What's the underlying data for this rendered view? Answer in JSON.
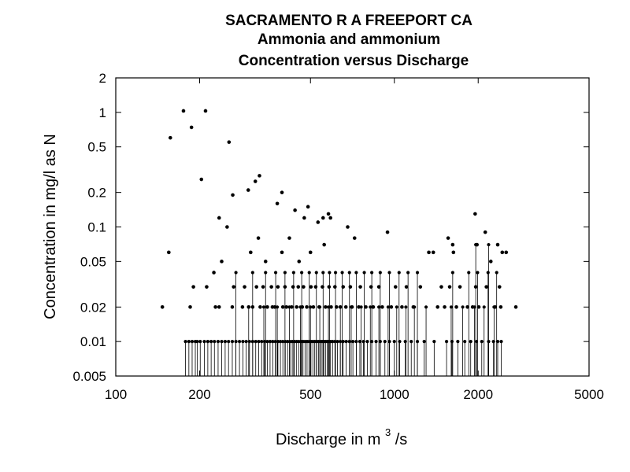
{
  "chart_data": {
    "type": "scatter",
    "title": "SACRAMENTO R A FREEPORT CA",
    "subtitle_1": "Ammonia and ammonium",
    "subtitle_2": "Concentration versus Discharge",
    "xlabel_main": "Discharge in m",
    "xlabel_sup": "3",
    "xlabel_tail": "/s",
    "ylabel": "Concentration in mg/l as N",
    "x_scale": "log",
    "y_scale": "log",
    "xlim": [
      100,
      5000
    ],
    "ylim": [
      0.005,
      2
    ],
    "x_ticks": [
      100,
      200,
      500,
      1000,
      2000,
      5000
    ],
    "x_tick_labels": [
      "100",
      "200",
      "500",
      "1000",
      "2000",
      "5000"
    ],
    "y_ticks": [
      0.005,
      0.01,
      0.02,
      0.05,
      0.1,
      0.2,
      0.5,
      1,
      2
    ],
    "y_tick_labels": [
      "0.005",
      "0.01",
      "0.02",
      "0.05",
      "0.1",
      "0.2",
      "0.5",
      "1",
      "2"
    ],
    "grid": false,
    "legend": "none",
    "censored_values_drawn_as": "vertical line from axis to reporting limit",
    "series": [
      {
        "kind": "detected",
        "points": [
          [
            147,
            0.02
          ],
          [
            155,
            0.06
          ],
          [
            157,
            0.6
          ],
          [
            175,
            1.03
          ],
          [
            187,
            0.74
          ],
          [
            203,
            0.26
          ],
          [
            210,
            1.03
          ],
          [
            235,
            0.12
          ],
          [
            251,
            0.1
          ],
          [
            255,
            0.55
          ],
          [
            263,
            0.19
          ],
          [
            299,
            0.21
          ],
          [
            317,
            0.25
          ],
          [
            325,
            0.08
          ],
          [
            328,
            0.28
          ],
          [
            380,
            0.16
          ],
          [
            395,
            0.2
          ],
          [
            440,
            0.14
          ],
          [
            475,
            0.12
          ],
          [
            490,
            0.15
          ],
          [
            532,
            0.11
          ],
          [
            555,
            0.12
          ],
          [
            580,
            0.13
          ],
          [
            590,
            0.12
          ],
          [
            680,
            0.1
          ],
          [
            720,
            0.08
          ],
          [
            945,
            0.09
          ],
          [
            1620,
            0.07
          ],
          [
            1950,
            0.13
          ],
          [
            2120,
            0.09
          ],
          [
            2350,
            0.07
          ],
          [
            2520,
            0.06
          ],
          [
            2730,
            0.02
          ],
          [
            185,
            0.02
          ],
          [
            190,
            0.03
          ],
          [
            212,
            0.03
          ],
          [
            225,
            0.04
          ],
          [
            240,
            0.05
          ],
          [
            305,
            0.06
          ],
          [
            345,
            0.05
          ],
          [
            395,
            0.06
          ],
          [
            420,
            0.08
          ],
          [
            455,
            0.05
          ],
          [
            500,
            0.06
          ],
          [
            560,
            0.07
          ],
          [
            1330,
            0.06
          ],
          [
            1380,
            0.06
          ],
          [
            1560,
            0.08
          ],
          [
            1630,
            0.06
          ],
          [
            1980,
            0.07
          ],
          [
            2220,
            0.05
          ],
          [
            2440,
            0.06
          ],
          [
            228,
            0.02
          ],
          [
            235,
            0.02
          ],
          [
            262,
            0.02
          ],
          [
            285,
            0.02
          ],
          [
            300,
            0.02
          ],
          [
            310,
            0.02
          ],
          [
            330,
            0.02
          ],
          [
            350,
            0.02
          ],
          [
            365,
            0.02
          ],
          [
            372,
            0.02
          ],
          [
            398,
            0.02
          ],
          [
            410,
            0.02
          ],
          [
            428,
            0.02
          ],
          [
            446,
            0.02
          ],
          [
            467,
            0.02
          ],
          [
            485,
            0.02
          ],
          [
            512,
            0.02
          ],
          [
            537,
            0.02
          ],
          [
            566,
            0.02
          ],
          [
            593,
            0.02
          ],
          [
            620,
            0.02
          ],
          [
            640,
            0.02
          ],
          [
            670,
            0.02
          ],
          [
            705,
            0.02
          ],
          [
            745,
            0.02
          ],
          [
            790,
            0.02
          ],
          [
            840,
            0.02
          ],
          [
            905,
            0.02
          ],
          [
            975,
            0.02
          ],
          [
            1065,
            0.02
          ],
          [
            1170,
            0.02
          ],
          [
            1430,
            0.02
          ],
          [
            1515,
            0.02
          ],
          [
            1670,
            0.02
          ],
          [
            1830,
            0.02
          ],
          [
            1910,
            0.02
          ],
          [
            2010,
            0.02
          ],
          [
            2300,
            0.02
          ],
          [
            2410,
            0.02
          ],
          [
            265,
            0.03
          ],
          [
            290,
            0.03
          ],
          [
            320,
            0.03
          ],
          [
            338,
            0.03
          ],
          [
            362,
            0.03
          ],
          [
            382,
            0.03
          ],
          [
            405,
            0.03
          ],
          [
            433,
            0.03
          ],
          [
            452,
            0.03
          ],
          [
            472,
            0.03
          ],
          [
            502,
            0.03
          ],
          [
            522,
            0.03
          ],
          [
            552,
            0.03
          ],
          [
            583,
            0.03
          ],
          [
            612,
            0.03
          ],
          [
            655,
            0.03
          ],
          [
            695,
            0.03
          ],
          [
            755,
            0.03
          ],
          [
            825,
            0.03
          ],
          [
            880,
            0.03
          ],
          [
            1010,
            0.03
          ],
          [
            1105,
            0.03
          ],
          [
            1240,
            0.03
          ],
          [
            1475,
            0.03
          ],
          [
            1580,
            0.03
          ],
          [
            1720,
            0.03
          ],
          [
            1960,
            0.03
          ],
          [
            2140,
            0.03
          ],
          [
            2385,
            0.03
          ]
        ]
      },
      {
        "kind": "censored",
        "points": [
          [
            178,
            0.01
          ],
          [
            183,
            0.01
          ],
          [
            188,
            0.01
          ],
          [
            193,
            0.01
          ],
          [
            196,
            0.01
          ],
          [
            201,
            0.01
          ],
          [
            208,
            0.01
          ],
          [
            214,
            0.01
          ],
          [
            220,
            0.01
          ],
          [
            226,
            0.01
          ],
          [
            233,
            0.01
          ],
          [
            240,
            0.01
          ],
          [
            247,
            0.01
          ],
          [
            254,
            0.01
          ],
          [
            262,
            0.01
          ],
          [
            270,
            0.01
          ],
          [
            278,
            0.01
          ],
          [
            286,
            0.01
          ],
          [
            294,
            0.01
          ],
          [
            302,
            0.01
          ],
          [
            310,
            0.01
          ],
          [
            318,
            0.01
          ],
          [
            326,
            0.01
          ],
          [
            334,
            0.01
          ],
          [
            342,
            0.01
          ],
          [
            350,
            0.01
          ],
          [
            358,
            0.01
          ],
          [
            366,
            0.01
          ],
          [
            374,
            0.01
          ],
          [
            382,
            0.01
          ],
          [
            390,
            0.01
          ],
          [
            398,
            0.01
          ],
          [
            406,
            0.01
          ],
          [
            414,
            0.01
          ],
          [
            422,
            0.01
          ],
          [
            430,
            0.01
          ],
          [
            438,
            0.01
          ],
          [
            446,
            0.01
          ],
          [
            454,
            0.01
          ],
          [
            462,
            0.01
          ],
          [
            470,
            0.01
          ],
          [
            478,
            0.01
          ],
          [
            486,
            0.01
          ],
          [
            494,
            0.01
          ],
          [
            502,
            0.01
          ],
          [
            510,
            0.01
          ],
          [
            518,
            0.01
          ],
          [
            526,
            0.01
          ],
          [
            534,
            0.01
          ],
          [
            542,
            0.01
          ],
          [
            550,
            0.01
          ],
          [
            558,
            0.01
          ],
          [
            566,
            0.01
          ],
          [
            574,
            0.01
          ],
          [
            582,
            0.01
          ],
          [
            590,
            0.01
          ],
          [
            600,
            0.01
          ],
          [
            612,
            0.01
          ],
          [
            625,
            0.01
          ],
          [
            640,
            0.01
          ],
          [
            655,
            0.01
          ],
          [
            672,
            0.01
          ],
          [
            690,
            0.01
          ],
          [
            710,
            0.01
          ],
          [
            730,
            0.01
          ],
          [
            752,
            0.01
          ],
          [
            775,
            0.01
          ],
          [
            800,
            0.01
          ],
          [
            830,
            0.01
          ],
          [
            860,
            0.01
          ],
          [
            890,
            0.01
          ],
          [
            925,
            0.01
          ],
          [
            960,
            0.01
          ],
          [
            1000,
            0.01
          ],
          [
            1045,
            0.01
          ],
          [
            1095,
            0.01
          ],
          [
            1150,
            0.01
          ],
          [
            1210,
            0.01
          ],
          [
            1280,
            0.01
          ],
          [
            1390,
            0.01
          ],
          [
            1540,
            0.01
          ],
          [
            1610,
            0.01
          ],
          [
            1690,
            0.01
          ],
          [
            1790,
            0.01
          ],
          [
            1880,
            0.01
          ],
          [
            1970,
            0.01
          ],
          [
            2060,
            0.01
          ],
          [
            2180,
            0.01
          ],
          [
            2270,
            0.01
          ],
          [
            2350,
            0.01
          ],
          [
            2420,
            0.01
          ],
          [
            300,
            0.02
          ],
          [
            340,
            0.02
          ],
          [
            380,
            0.02
          ],
          [
            420,
            0.02
          ],
          [
            460,
            0.02
          ],
          [
            500,
            0.02
          ],
          [
            540,
            0.02
          ],
          [
            580,
            0.02
          ],
          [
            640,
            0.02
          ],
          [
            700,
            0.02
          ],
          [
            760,
            0.02
          ],
          [
            820,
            0.02
          ],
          [
            880,
            0.02
          ],
          [
            950,
            0.02
          ],
          [
            1020,
            0.02
          ],
          [
            1100,
            0.02
          ],
          [
            1180,
            0.02
          ],
          [
            1300,
            0.02
          ],
          [
            1600,
            0.02
          ],
          [
            1760,
            0.02
          ],
          [
            1940,
            0.02
          ],
          [
            2100,
            0.02
          ],
          [
            2280,
            0.02
          ],
          [
            270,
            0.04
          ],
          [
            310,
            0.04
          ],
          [
            345,
            0.04
          ],
          [
            375,
            0.04
          ],
          [
            405,
            0.04
          ],
          [
            435,
            0.04
          ],
          [
            465,
            0.04
          ],
          [
            495,
            0.04
          ],
          [
            525,
            0.04
          ],
          [
            555,
            0.04
          ],
          [
            585,
            0.04
          ],
          [
            615,
            0.04
          ],
          [
            650,
            0.04
          ],
          [
            690,
            0.04
          ],
          [
            730,
            0.04
          ],
          [
            780,
            0.04
          ],
          [
            830,
            0.04
          ],
          [
            890,
            0.04
          ],
          [
            960,
            0.04
          ],
          [
            1040,
            0.04
          ],
          [
            1120,
            0.04
          ],
          [
            1210,
            0.04
          ],
          [
            1620,
            0.04
          ],
          [
            1850,
            0.04
          ],
          [
            1990,
            0.04
          ],
          [
            2170,
            0.04
          ],
          [
            2330,
            0.04
          ],
          [
            1960,
            0.07
          ],
          [
            2180,
            0.07
          ]
        ]
      }
    ]
  }
}
